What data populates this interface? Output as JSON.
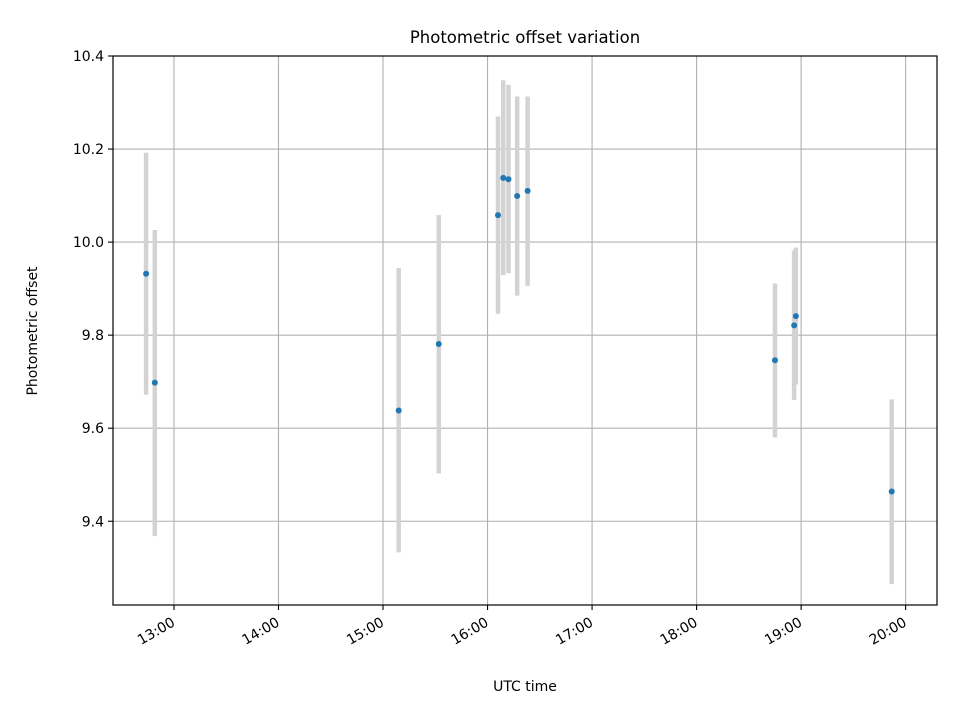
{
  "chart_data": {
    "type": "scatter",
    "title": "Photometric offset variation",
    "xlabel": "UTC time",
    "ylabel": "Photometric offset",
    "x_ticks": [
      "13:00",
      "14:00",
      "15:00",
      "16:00",
      "17:00",
      "18:00",
      "19:00",
      "20:00"
    ],
    "y_ticks": [
      "9.4",
      "9.6",
      "9.8",
      "10.0",
      "10.2",
      "10.4"
    ],
    "xlim": [
      "12:25",
      "20:18"
    ],
    "ylim": [
      9.22,
      10.4
    ],
    "grid": true,
    "point_color": "#1f77b4",
    "errorbar_color": "#d3d3d3",
    "points": [
      {
        "x": "12:44",
        "y": 9.932,
        "ylow": 9.672,
        "yhigh": 10.192
      },
      {
        "x": "12:49",
        "y": 9.698,
        "ylow": 9.368,
        "yhigh": 10.026
      },
      {
        "x": "15:09",
        "y": 9.638,
        "ylow": 9.333,
        "yhigh": 9.944
      },
      {
        "x": "15:32",
        "y": 9.781,
        "ylow": 9.503,
        "yhigh": 10.058
      },
      {
        "x": "16:06",
        "y": 10.058,
        "ylow": 9.846,
        "yhigh": 10.27
      },
      {
        "x": "16:09",
        "y": 10.138,
        "ylow": 9.929,
        "yhigh": 10.348
      },
      {
        "x": "16:12",
        "y": 10.135,
        "ylow": 9.933,
        "yhigh": 10.338
      },
      {
        "x": "16:17",
        "y": 10.099,
        "ylow": 9.885,
        "yhigh": 10.313
      },
      {
        "x": "16:23",
        "y": 10.11,
        "ylow": 9.906,
        "yhigh": 10.313
      },
      {
        "x": "18:45",
        "y": 9.746,
        "ylow": 9.58,
        "yhigh": 9.911
      },
      {
        "x": "18:56",
        "y": 9.821,
        "ylow": 9.661,
        "yhigh": 9.982
      },
      {
        "x": "18:57",
        "y": 9.841,
        "ylow": 9.694,
        "yhigh": 9.988
      },
      {
        "x": "19:52",
        "y": 9.464,
        "ylow": 9.265,
        "yhigh": 9.662
      }
    ]
  }
}
